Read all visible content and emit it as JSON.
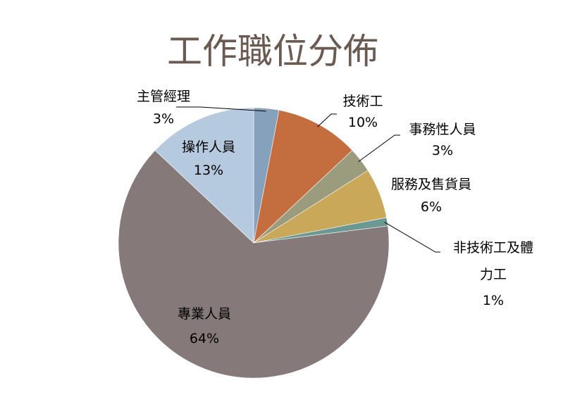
{
  "chart_data": {
    "type": "pie",
    "title": "工作職位分佈",
    "start_angle_deg": 0,
    "direction": "clockwise",
    "slices": [
      {
        "name": "主管經理",
        "value": 3,
        "label": "3%",
        "color": "#86a1bb"
      },
      {
        "name": "技術工",
        "value": 10,
        "label": "10%",
        "color": "#c46e3f"
      },
      {
        "name": "事務性人員",
        "value": 3,
        "label": "3%",
        "color": "#9b9c7d"
      },
      {
        "name": "服務及售貨員",
        "value": 6,
        "label": "6%",
        "color": "#c9a85a"
      },
      {
        "name": "非技術工及體力工",
        "value": 1,
        "label": "1%",
        "color": "#6c9894"
      },
      {
        "name": "專業人員",
        "value": 64,
        "label": "64%",
        "color": "#857a79"
      },
      {
        "name": "操作人員",
        "value": 13,
        "label": "13%",
        "color": "#b6cadf"
      }
    ]
  }
}
